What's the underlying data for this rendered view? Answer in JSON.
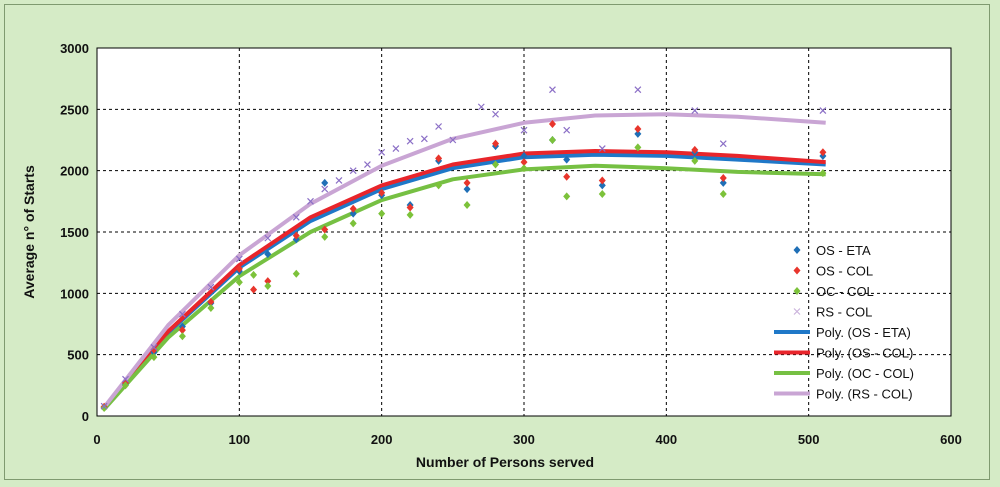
{
  "chart_data": {
    "type": "scatter",
    "xlabel": "Number of Persons served",
    "ylabel": "Average n° of Starts",
    "xlim": [
      0,
      600
    ],
    "ylim": [
      0,
      3000
    ],
    "xticks": [
      0,
      100,
      200,
      300,
      400,
      500,
      600
    ],
    "yticks": [
      0,
      500,
      1000,
      1500,
      2000,
      2500,
      3000
    ],
    "grid": true,
    "legend_position": "right",
    "series": [
      {
        "name": "OS - ETA",
        "kind": "scatter",
        "marker": "diamond",
        "color": "#1f6fb6",
        "x": [
          5,
          20,
          40,
          60,
          80,
          100,
          120,
          140,
          160,
          180,
          200,
          220,
          240,
          260,
          280,
          300,
          320,
          330,
          355,
          380,
          420,
          440,
          510
        ],
        "y": [
          70,
          260,
          520,
          730,
          920,
          1180,
          1320,
          1440,
          1900,
          1650,
          1800,
          1720,
          2080,
          1850,
          2200,
          2120,
          2250,
          2090,
          1880,
          2300,
          2150,
          1900,
          2120
        ]
      },
      {
        "name": "OS - COL",
        "kind": "scatter",
        "marker": "diamond",
        "color": "#e8352c",
        "x": [
          5,
          20,
          40,
          60,
          80,
          100,
          110,
          120,
          140,
          160,
          180,
          200,
          220,
          240,
          260,
          280,
          300,
          320,
          330,
          355,
          380,
          420,
          440,
          510
        ],
        "y": [
          75,
          270,
          540,
          700,
          930,
          1200,
          1030,
          1100,
          1470,
          1520,
          1690,
          1820,
          1700,
          2100,
          1900,
          2220,
          2070,
          2380,
          1950,
          1920,
          2340,
          2170,
          1940,
          2150
        ]
      },
      {
        "name": "OC - COL",
        "kind": "scatter",
        "marker": "diamond",
        "color": "#7cc23a",
        "x": [
          5,
          20,
          40,
          60,
          80,
          100,
          110,
          120,
          140,
          160,
          180,
          200,
          220,
          240,
          260,
          280,
          300,
          320,
          330,
          355,
          380,
          420,
          440,
          510
        ],
        "y": [
          65,
          250,
          480,
          650,
          880,
          1090,
          1150,
          1060,
          1160,
          1460,
          1570,
          1650,
          1640,
          1880,
          1720,
          2050,
          2020,
          2250,
          1790,
          1810,
          2190,
          2080,
          1810,
          1980
        ]
      },
      {
        "name": "RS - COL",
        "kind": "scatter",
        "marker": "x",
        "color": "#8b6fc6",
        "x": [
          5,
          20,
          40,
          60,
          80,
          100,
          120,
          140,
          150,
          160,
          170,
          180,
          190,
          200,
          210,
          220,
          230,
          240,
          250,
          270,
          280,
          300,
          320,
          330,
          355,
          380,
          420,
          440,
          510
        ],
        "y": [
          80,
          300,
          560,
          830,
          1050,
          1280,
          1450,
          1620,
          1750,
          1850,
          1920,
          2000,
          2050,
          2150,
          2180,
          2240,
          2260,
          2360,
          2250,
          2520,
          2460,
          2330,
          2660,
          2330,
          2180,
          2660,
          2490,
          2220,
          2490
        ]
      },
      {
        "name": "Poly. (OS - ETA)",
        "kind": "line",
        "color": "#1f78c8",
        "width": 4,
        "x": [
          5,
          50,
          100,
          150,
          200,
          250,
          300,
          350,
          400,
          450,
          512
        ],
        "y": [
          60,
          680,
          1210,
          1590,
          1850,
          2020,
          2110,
          2130,
          2120,
          2090,
          2050
        ]
      },
      {
        "name": "Poly. (OS - COL)",
        "kind": "line",
        "color": "#e8252b",
        "width": 4,
        "x": [
          5,
          50,
          100,
          150,
          200,
          250,
          300,
          350,
          400,
          450,
          512
        ],
        "y": [
          60,
          690,
          1230,
          1620,
          1880,
          2050,
          2140,
          2160,
          2150,
          2120,
          2070
        ]
      },
      {
        "name": "Poly. (OC - COL)",
        "kind": "line",
        "color": "#76c043",
        "width": 4,
        "x": [
          5,
          50,
          100,
          150,
          200,
          250,
          300,
          350,
          400,
          450,
          512
        ],
        "y": [
          55,
          640,
          1140,
          1500,
          1760,
          1930,
          2010,
          2040,
          2020,
          1990,
          1970
        ]
      },
      {
        "name": "Poly. (RS - COL)",
        "kind": "line",
        "color": "#c9a5d4",
        "width": 4,
        "x": [
          5,
          50,
          100,
          150,
          200,
          250,
          300,
          350,
          400,
          450,
          512
        ],
        "y": [
          70,
          740,
          1310,
          1730,
          2040,
          2260,
          2390,
          2450,
          2460,
          2440,
          2390
        ]
      }
    ]
  }
}
